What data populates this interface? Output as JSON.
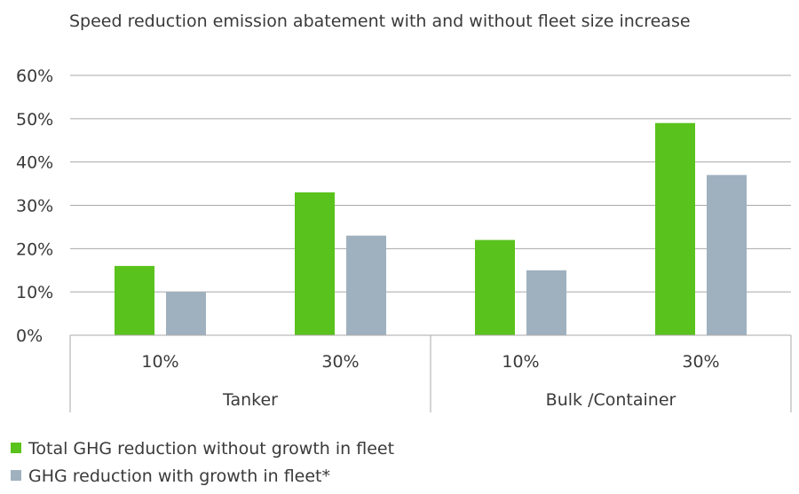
{
  "chart_data": {
    "type": "bar",
    "title": "Speed reduction emission abatement with and without fleet size increase",
    "xlabel": "",
    "ylabel": "",
    "ylim": [
      0,
      60
    ],
    "y_ticks": [
      "0%",
      "10%",
      "20%",
      "30%",
      "40%",
      "50%",
      "60%"
    ],
    "y_tick_values": [
      0,
      10,
      20,
      30,
      40,
      50,
      60
    ],
    "grid": true,
    "legend_position": "bottom-left",
    "groups": [
      {
        "name": "Tanker",
        "categories": [
          "10%",
          "30%"
        ]
      },
      {
        "name": "Bulk /Container",
        "categories": [
          "10%",
          "30%"
        ]
      }
    ],
    "series": [
      {
        "name": "Total GHG reduction without growth in fleet",
        "color": "#5ac21c",
        "values": [
          16,
          33,
          22,
          49
        ]
      },
      {
        "name": "GHG reduction with growth in fleet*",
        "color": "#9fb1bf",
        "values": [
          10,
          23,
          15,
          37
        ]
      }
    ]
  }
}
